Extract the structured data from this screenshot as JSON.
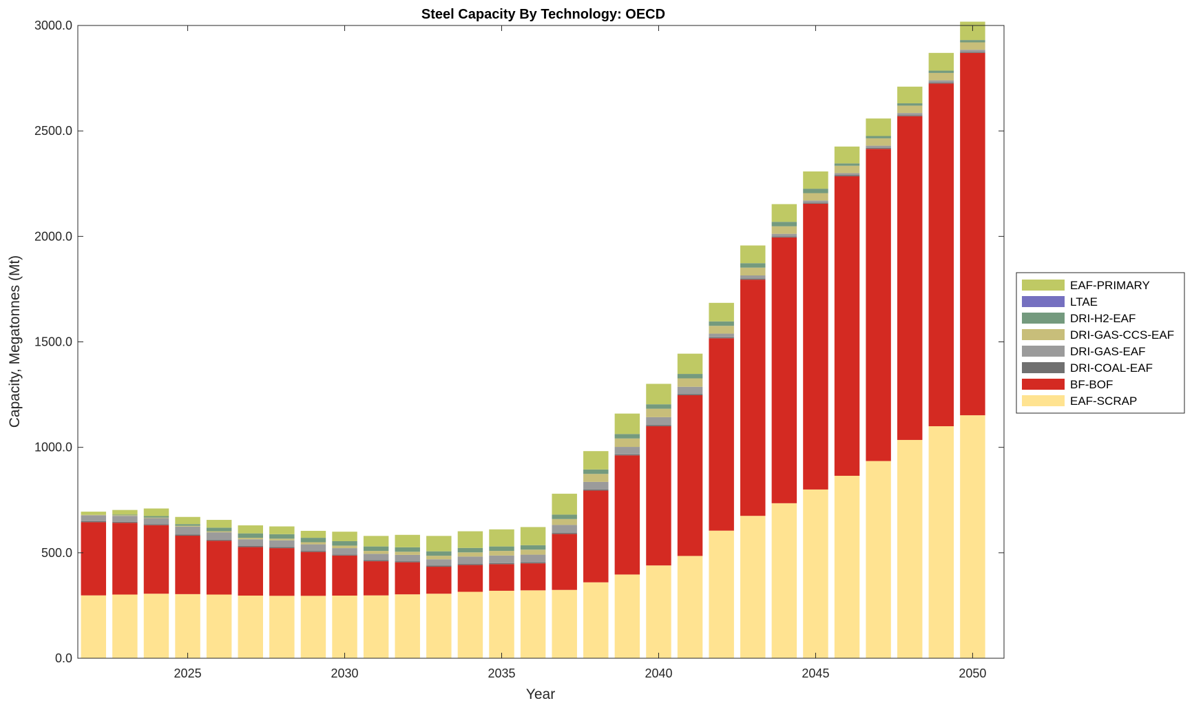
{
  "chart_data": {
    "type": "bar",
    "stacked": true,
    "title": "Steel Capacity By Technology: OECD",
    "xlabel": "Year",
    "ylabel": "Capacity, Megatonnes (Mt)",
    "ylim": [
      0,
      3000
    ],
    "xlim": [
      2021.5,
      2051
    ],
    "yticks": [
      "0.0",
      "500.0",
      "1000.0",
      "1500.0",
      "2000.0",
      "2500.0",
      "3000.0"
    ],
    "ytick_values": [
      0,
      500,
      1000,
      1500,
      2000,
      2500,
      3000
    ],
    "xticks": [
      "2025",
      "2030",
      "2035",
      "2040",
      "2045",
      "2050"
    ],
    "xtick_values": [
      2025,
      2030,
      2035,
      2040,
      2045,
      2050
    ],
    "legend_position": "outside-right",
    "x": [
      2022,
      2023,
      2024,
      2025,
      2026,
      2027,
      2028,
      2029,
      2030,
      2031,
      2032,
      2033,
      2034,
      2035,
      2036,
      2037,
      2038,
      2039,
      2040,
      2041,
      2042,
      2043,
      2044,
      2045,
      2046,
      2047,
      2048,
      2049,
      2050
    ],
    "series": [
      {
        "name": "EAF-SCRAP",
        "color": "#FFE391",
        "values": [
          298,
          302,
          306,
          304,
          302,
          297,
          296,
          296,
          297,
          298,
          303,
          306,
          315,
          320,
          322,
          324,
          360,
          397,
          440,
          485,
          605,
          675,
          735,
          800,
          865,
          935,
          1035,
          1100,
          1152
        ]
      },
      {
        "name": "BF-BOF",
        "color": "#D42A22",
        "values": [
          347,
          340,
          325,
          277,
          255,
          230,
          226,
          208,
          190,
          162,
          152,
          128,
          127,
          126,
          128,
          265,
          435,
          565,
          660,
          762,
          912,
          1120,
          1260,
          1355,
          1420,
          1480,
          1535,
          1625,
          1718
        ]
      },
      {
        "name": "DRI-COAL-EAF",
        "color": "#707070",
        "values": [
          5,
          5,
          5,
          5,
          5,
          5,
          5,
          5,
          5,
          5,
          5,
          5,
          5,
          5,
          5,
          5,
          5,
          5,
          5,
          5,
          5,
          5,
          5,
          5,
          5,
          5,
          5,
          5,
          5
        ]
      },
      {
        "name": "DRI-GAS-EAF",
        "color": "#9B9B9B",
        "values": [
          28,
          28,
          28,
          38,
          35,
          32,
          32,
          31,
          30,
          30,
          30,
          30,
          35,
          36,
          36,
          38,
          36,
          35,
          38,
          35,
          17,
          15,
          12,
          10,
          10,
          10,
          10,
          10,
          10
        ]
      },
      {
        "name": "DRI-GAS-CCS-EAF",
        "color": "#C8BE7A",
        "values": [
          2,
          3,
          3,
          4,
          5,
          7,
          8,
          10,
          12,
          14,
          15,
          17,
          20,
          22,
          24,
          28,
          38,
          40,
          40,
          40,
          37,
          37,
          36,
          35,
          35,
          35,
          35,
          35,
          35
        ]
      },
      {
        "name": "DRI-H2-EAF",
        "color": "#749A7E",
        "values": [
          0,
          3,
          7,
          8,
          17,
          21,
          21,
          21,
          21,
          21,
          21,
          21,
          21,
          21,
          21,
          21,
          21,
          21,
          21,
          21,
          21,
          21,
          21,
          21,
          11,
          11,
          11,
          11,
          11
        ]
      },
      {
        "name": "LTAE",
        "color": "#7570C0",
        "values": [
          0,
          0,
          0,
          0,
          0,
          0,
          0,
          0,
          0,
          0,
          0,
          0,
          0,
          0,
          0,
          0,
          0,
          0,
          0,
          0,
          0,
          0,
          0,
          0,
          0,
          0,
          0,
          0,
          0
        ]
      },
      {
        "name": "EAF-PRIMARY",
        "color": "#BFC964",
        "values": [
          15,
          22,
          36,
          34,
          37,
          38,
          37,
          33,
          45,
          50,
          59,
          73,
          79,
          81,
          86,
          99,
          87,
          97,
          97,
          96,
          88,
          84,
          84,
          82,
          80,
          83,
          79,
          84,
          87
        ]
      }
    ]
  }
}
